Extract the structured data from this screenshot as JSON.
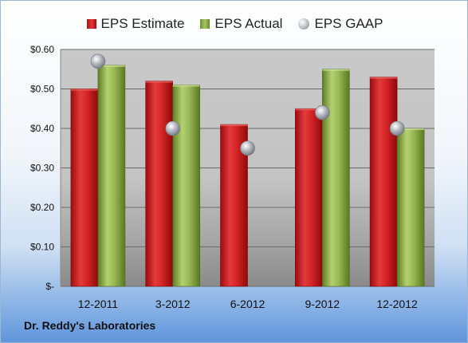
{
  "company_label": "Dr. Reddy's Laboratories",
  "chart_data": {
    "type": "bar",
    "title": "",
    "xlabel": "",
    "ylabel": "",
    "categories": [
      "12-2011",
      "3-2012",
      "6-2012",
      "9-2012",
      "12-2012"
    ],
    "series": [
      {
        "name": "EPS Estimate",
        "kind": "bar",
        "color": "#c8171a",
        "values": [
          0.5,
          0.52,
          0.41,
          0.45,
          0.53
        ]
      },
      {
        "name": "EPS Actual",
        "kind": "bar",
        "color": "#8eb04a",
        "values": [
          0.56,
          0.51,
          null,
          0.55,
          0.4
        ]
      },
      {
        "name": "EPS GAAP",
        "kind": "marker",
        "color": "#a8abb3",
        "values": [
          0.57,
          0.4,
          0.35,
          0.44,
          0.4
        ]
      }
    ],
    "ylim": [
      0,
      0.6
    ],
    "yticks": [
      0,
      0.1,
      0.2,
      0.3,
      0.4,
      0.5,
      0.6
    ],
    "ytick_labels": [
      "$-",
      "$0.10",
      "$0.20",
      "$0.30",
      "$0.40",
      "$0.50",
      "$0.60"
    ],
    "grid": true,
    "legend_position": "top"
  }
}
